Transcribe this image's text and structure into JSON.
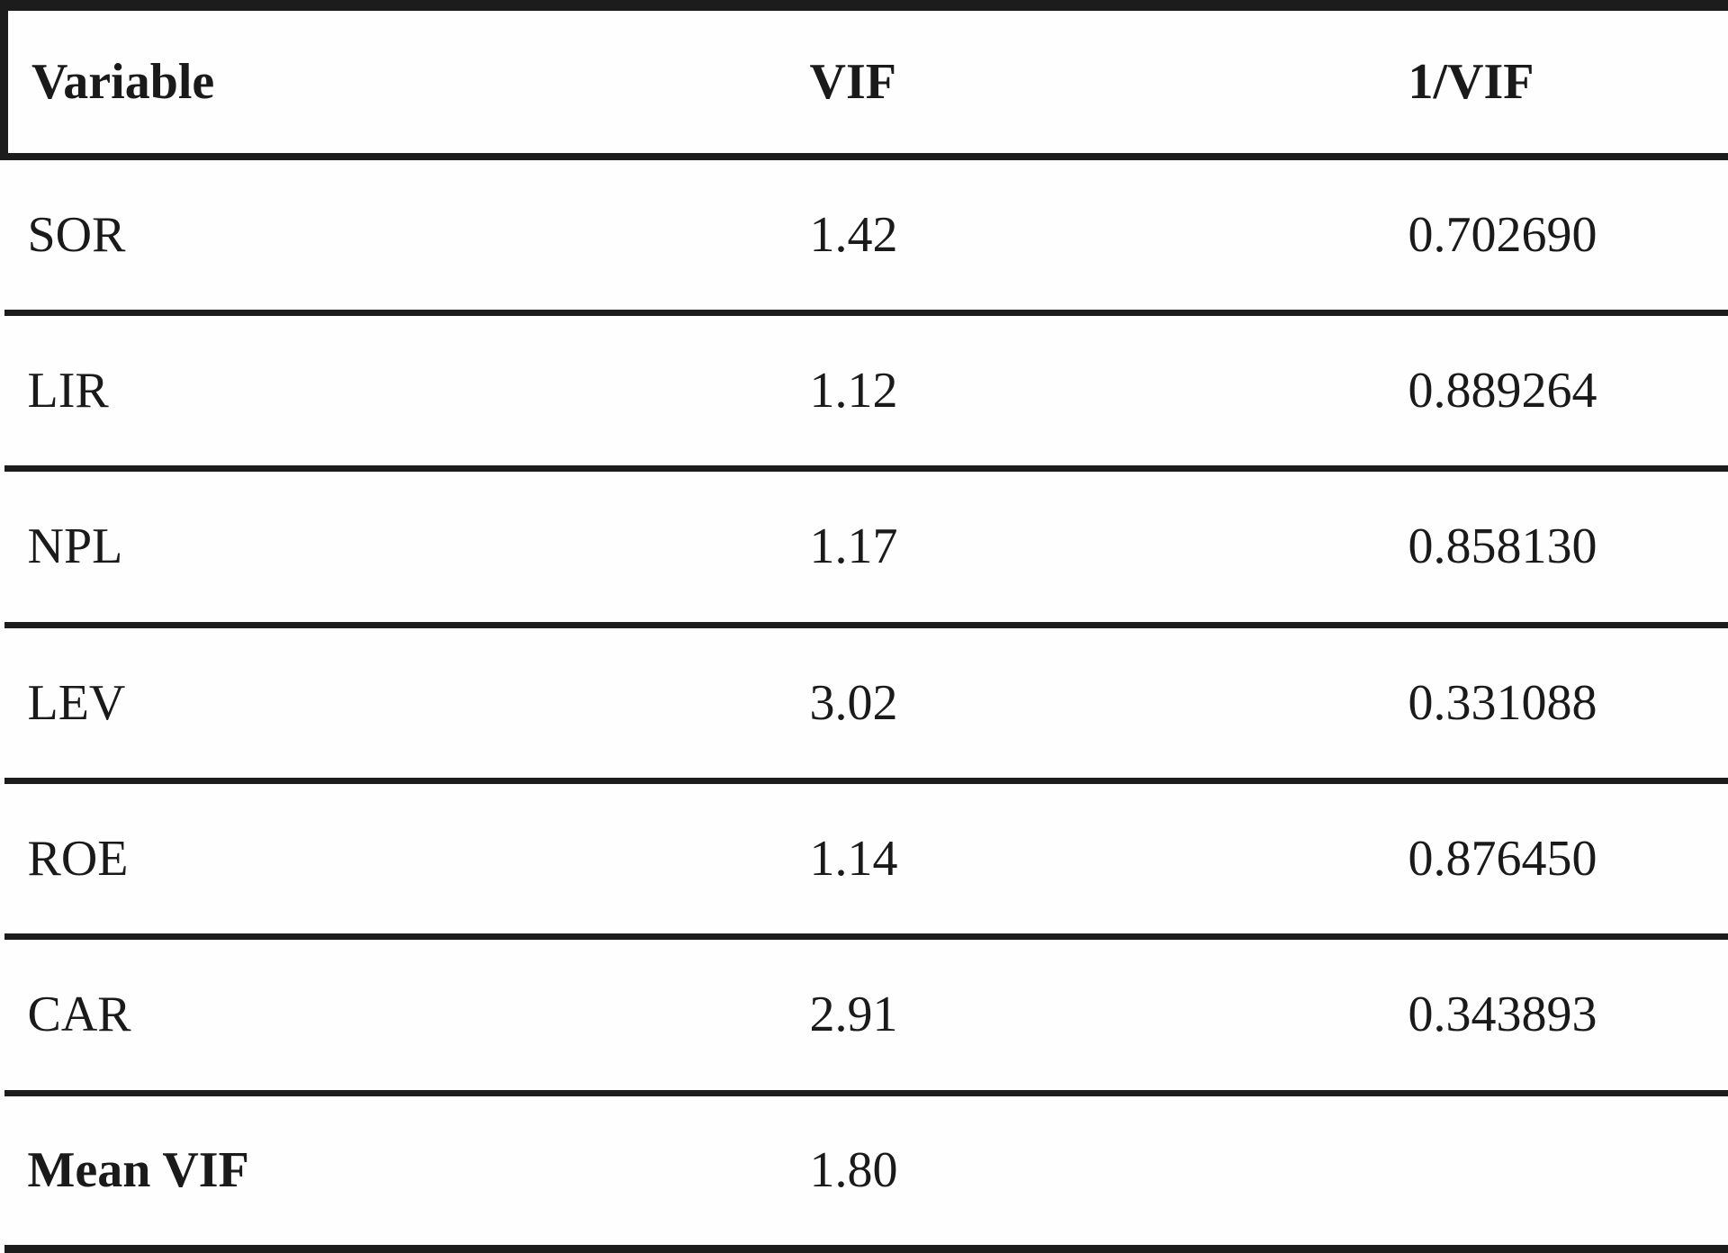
{
  "colors": {
    "text": "#1a1a1a",
    "border": "#1c1c1c",
    "background": "#fefefe"
  },
  "table": {
    "headers": {
      "variable": "Variable",
      "vif": "VIF",
      "inv_vif": "1/VIF"
    },
    "rows": [
      {
        "variable": "SOR",
        "vif": "1.42",
        "inv_vif": "0.702690"
      },
      {
        "variable": "LIR",
        "vif": "1.12",
        "inv_vif": "0.889264"
      },
      {
        "variable": "NPL",
        "vif": "1.17",
        "inv_vif": "0.858130"
      },
      {
        "variable": "LEV",
        "vif": "3.02",
        "inv_vif": "0.331088"
      },
      {
        "variable": "ROE",
        "vif": "1.14",
        "inv_vif": "0.876450"
      },
      {
        "variable": "CAR",
        "vif": "2.91",
        "inv_vif": "0.343893"
      },
      {
        "variable": "Mean VIF",
        "vif": "1.80",
        "inv_vif": ""
      }
    ]
  }
}
